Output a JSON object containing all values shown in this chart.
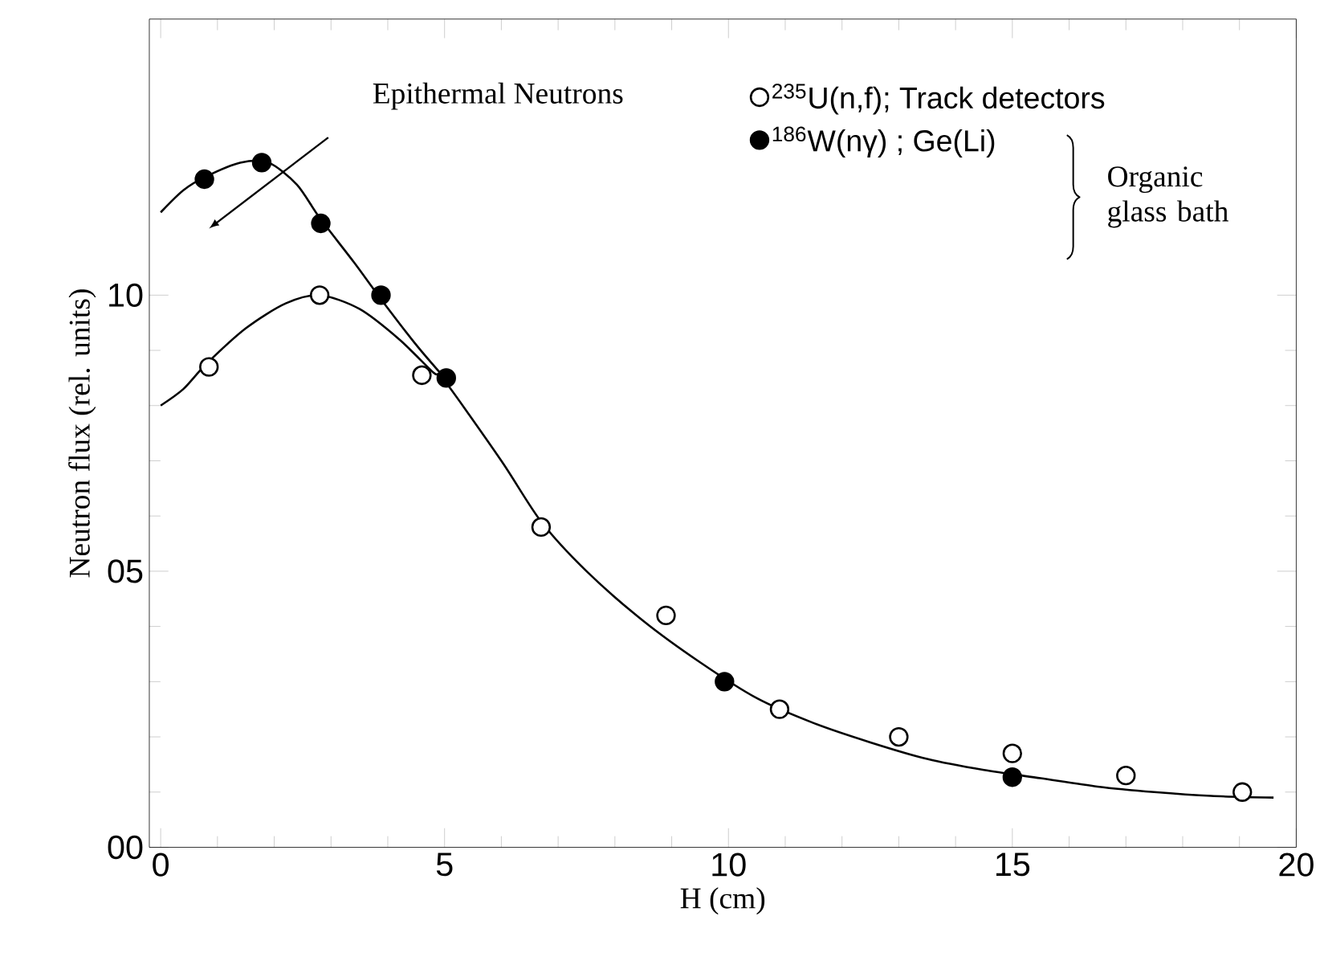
{
  "chart_data": {
    "type": "scatter",
    "xlabel": "H (cm)",
    "ylabel": "Neutron flux  (rel. units)",
    "xlim": [
      -0.2,
      20
    ],
    "ylim": [
      0,
      15
    ],
    "xticks": [
      0,
      5,
      10,
      15,
      20
    ],
    "yticks": [
      {
        "value": 0,
        "label": "00"
      },
      {
        "value": 5,
        "label": "05"
      },
      10
    ],
    "grid": false,
    "legend": "top right",
    "marker": "circle",
    "series": [
      {
        "name": "$^{235}$U(n,f); Track detectors",
        "color": "#ffffff",
        "x": [
          0.85,
          2.8,
          4.6,
          6.7,
          8.9,
          10.9,
          13.0,
          15.0,
          17.0,
          19.05
        ],
        "values": [
          8.7,
          10.0,
          8.55,
          5.8,
          4.2,
          2.5,
          2.0,
          1.7,
          1.3,
          1.0
        ]
      },
      {
        "name": "$^{186}$W(nγ) ; Ge(Li)",
        "color": "#000000",
        "x": [
          0.77,
          1.78,
          2.82,
          3.88,
          5.03,
          9.93,
          15.0
        ],
        "values": [
          12.1,
          12.4,
          11.3,
          10.0,
          8.5,
          3.0,
          1.27
        ]
      },
      {
        "type": "line",
        "marker": "none",
        "color": "#000000",
        "x": [
          0,
          0.4,
          0.8,
          1.5,
          2.2,
          2.8,
          3.5,
          4.2,
          4.8,
          5.0,
          6.0,
          6.7,
          7.5,
          8.5,
          9.5,
          10.5,
          11.5,
          12.5,
          13.5,
          14.5,
          15.5,
          16.5,
          17.5,
          18.5,
          19.6
        ],
        "values": [
          8.0,
          8.3,
          8.75,
          9.4,
          9.85,
          10.0,
          9.75,
          9.2,
          8.6,
          8.45,
          7.0,
          5.9,
          5.0,
          4.1,
          3.35,
          2.7,
          2.25,
          1.9,
          1.6,
          1.4,
          1.25,
          1.1,
          1.0,
          0.93,
          0.9
        ]
      },
      {
        "type": "line",
        "marker": "none",
        "color": "#000000",
        "x": [
          0,
          0.4,
          0.8,
          1.4,
          1.9,
          2.4,
          2.8,
          3.4,
          3.9,
          4.5,
          5.0
        ],
        "values": [
          11.5,
          11.9,
          12.15,
          12.4,
          12.4,
          12.0,
          11.4,
          10.6,
          9.9,
          9.1,
          8.5
        ]
      }
    ],
    "annotations": [
      "Epithermal Neutrons",
      "Organic glass bath"
    ]
  }
}
